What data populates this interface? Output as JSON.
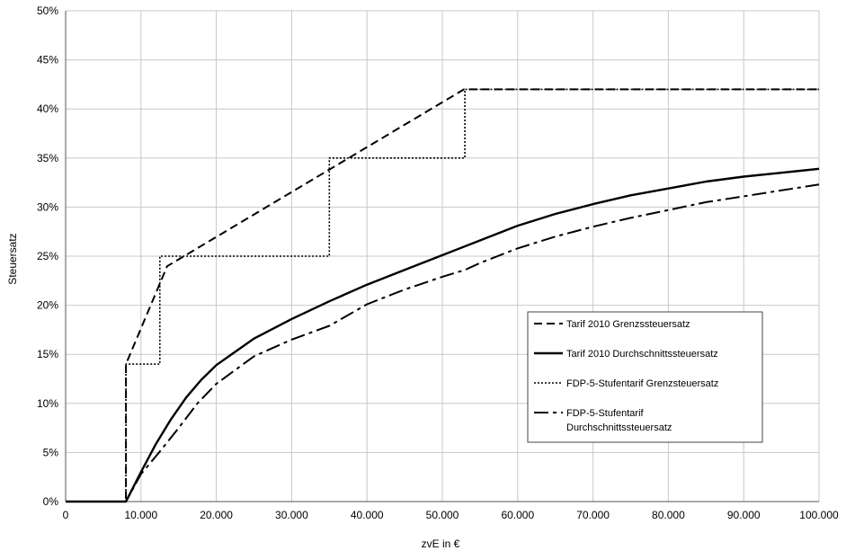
{
  "chart_data": {
    "type": "line",
    "xlabel": "zvE in €",
    "ylabel": "Steuersatz",
    "xlim": [
      0,
      100000
    ],
    "ylim": [
      0,
      50
    ],
    "x_ticks": [
      0,
      10000,
      20000,
      30000,
      40000,
      50000,
      60000,
      70000,
      80000,
      90000,
      100000
    ],
    "x_tick_labels": [
      "0",
      "10.000",
      "20.000",
      "30.000",
      "40.000",
      "50.000",
      "60.000",
      "70.000",
      "80.000",
      "90.000",
      "100.000"
    ],
    "y_ticks": [
      0,
      5,
      10,
      15,
      20,
      25,
      30,
      35,
      40,
      45,
      50
    ],
    "y_tick_labels": [
      "0%",
      "5%",
      "10%",
      "15%",
      "20%",
      "25%",
      "30%",
      "35%",
      "40%",
      "45%",
      "50%"
    ],
    "grid": true,
    "legend_position": "right",
    "series": [
      {
        "name": "Tarif 2010 Grenzssteuersatz",
        "style": "dashed",
        "x": [
          0,
          8004,
          8005,
          13469,
          52881,
          53000,
          100000
        ],
        "y": [
          0,
          0,
          14,
          23.97,
          42,
          42,
          42
        ]
      },
      {
        "name": "Tarif 2010 Durchschnittssteuersatz",
        "style": "solid",
        "x": [
          0,
          8004,
          10000,
          12000,
          14000,
          16000,
          18000,
          20000,
          25000,
          30000,
          35000,
          40000,
          45000,
          50000,
          55000,
          60000,
          65000,
          70000,
          75000,
          80000,
          85000,
          90000,
          95000,
          100000
        ],
        "y": [
          0,
          0,
          3.0,
          5.9,
          8.4,
          10.6,
          12.4,
          13.9,
          16.6,
          18.6,
          20.4,
          22.1,
          23.6,
          25.1,
          26.6,
          28.1,
          29.3,
          30.3,
          31.2,
          31.9,
          32.6,
          33.1,
          33.5,
          33.9
        ]
      },
      {
        "name": "FDP-5-Stufentarif Grenzsteuersatz",
        "style": "dotted",
        "x": [
          8004,
          8004,
          12500,
          12500,
          35000,
          35000,
          53000,
          53000,
          100000
        ],
        "y": [
          0,
          14,
          14,
          25,
          25,
          35,
          35,
          42,
          42
        ]
      },
      {
        "name": "FDP-5-Stufentarif Durchschnittssteuersatz",
        "style": "longdash",
        "x": [
          0,
          8004,
          10000,
          12500,
          15000,
          17500,
          20000,
          25000,
          30000,
          35000,
          40000,
          45000,
          50000,
          53000,
          55000,
          60000,
          65000,
          70000,
          75000,
          80000,
          85000,
          90000,
          95000,
          100000
        ],
        "y": [
          0,
          0,
          2.8,
          5.1,
          7.5,
          10.0,
          12.0,
          14.8,
          16.5,
          17.9,
          20.1,
          21.6,
          22.9,
          23.6,
          24.3,
          25.8,
          27.0,
          28.0,
          28.9,
          29.7,
          30.5,
          31.1,
          31.7,
          32.3
        ]
      }
    ],
    "legend": {
      "entries": [
        {
          "series_index": 0,
          "lines": [
            "Tarif 2010 Grenzssteuersatz"
          ]
        },
        {
          "series_index": 1,
          "lines": [
            "Tarif 2010 Durchschnittssteuersatz"
          ]
        },
        {
          "series_index": 2,
          "lines": [
            "FDP-5-Stufentarif Grenzsteuersatz"
          ]
        },
        {
          "series_index": 3,
          "lines": [
            "FDP-5-Stufentarif",
            "Durchschnittssteuersatz"
          ]
        }
      ]
    }
  }
}
